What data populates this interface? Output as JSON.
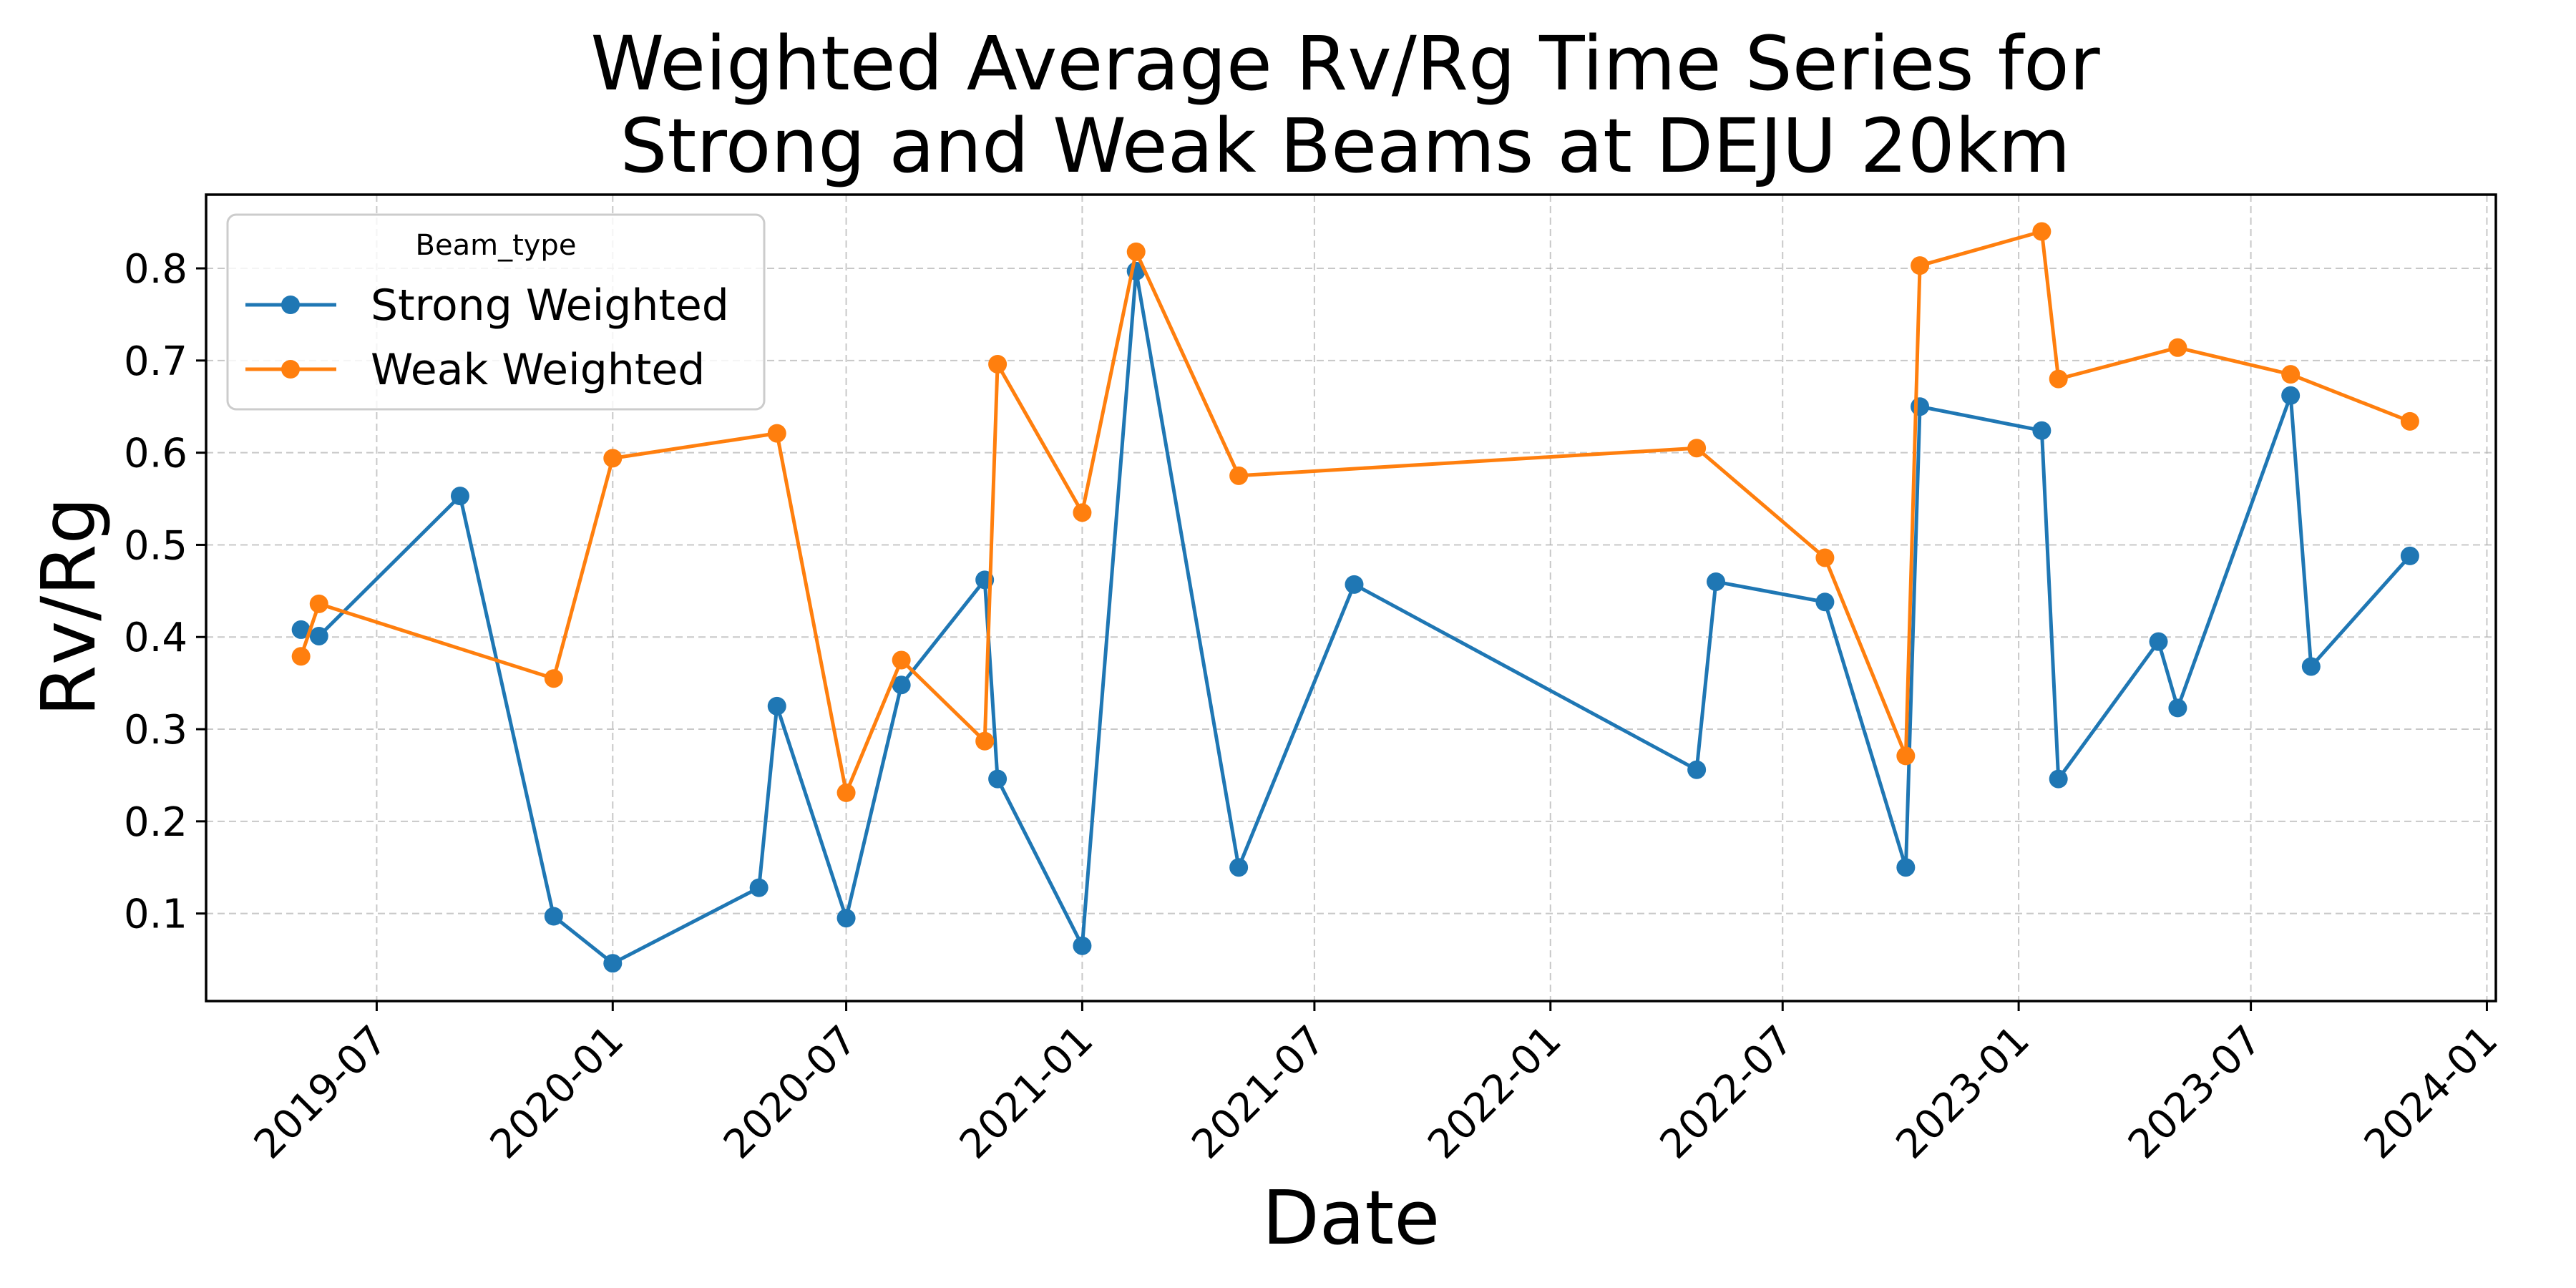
{
  "chart_data": {
    "type": "line",
    "title_line1": "Weighted Average Rv/Rg Time Series for",
    "title_line2": "Strong and Weak Beams at DEJU 20km",
    "xlabel": "Date",
    "ylabel": "Rv/Rg",
    "xlim": [
      "2019-02-18",
      "2024-01-08"
    ],
    "ylim": [
      0.005,
      0.88
    ],
    "x_ticks": [
      "2019-07-01",
      "2020-01-01",
      "2020-07-01",
      "2021-01-01",
      "2021-07-01",
      "2022-01-01",
      "2022-07-01",
      "2023-01-01",
      "2023-07-01",
      "2024-01-01"
    ],
    "x_tick_labels": [
      "2019-07",
      "2020-01",
      "2020-07",
      "2021-01",
      "2021-07",
      "2022-01",
      "2022-07",
      "2023-01",
      "2023-07",
      "2024-01"
    ],
    "y_ticks": [
      0.1,
      0.2,
      0.3,
      0.4,
      0.5,
      0.6,
      0.7,
      0.8
    ],
    "y_tick_labels": [
      "0.1",
      "0.2",
      "0.3",
      "0.4",
      "0.5",
      "0.6",
      "0.7",
      "0.8"
    ],
    "grid": true,
    "legend": {
      "title": "Beam_type",
      "placement": "top-left"
    },
    "series": [
      {
        "name": "Strong Weighted",
        "color": "#1f77b4",
        "points": [
          [
            "2019-05-03",
            0.408
          ],
          [
            "2019-05-17",
            0.401
          ],
          [
            "2019-09-04",
            0.553
          ],
          [
            "2019-11-16",
            0.097
          ],
          [
            "2020-01-01",
            0.046
          ],
          [
            "2020-04-24",
            0.128
          ],
          [
            "2020-05-08",
            0.325
          ],
          [
            "2020-07-01",
            0.095
          ],
          [
            "2020-08-13",
            0.348
          ],
          [
            "2020-10-17",
            0.462
          ],
          [
            "2020-10-27",
            0.246
          ],
          [
            "2021-01-01",
            0.065
          ],
          [
            "2021-02-12",
            0.797
          ],
          [
            "2021-05-03",
            0.15
          ],
          [
            "2021-08-01",
            0.457
          ],
          [
            "2022-04-25",
            0.256
          ],
          [
            "2022-05-10",
            0.46
          ],
          [
            "2022-08-03",
            0.438
          ],
          [
            "2022-10-05",
            0.15
          ],
          [
            "2022-10-16",
            0.65
          ],
          [
            "2023-01-19",
            0.624
          ],
          [
            "2023-02-01",
            0.246
          ],
          [
            "2023-04-20",
            0.395
          ],
          [
            "2023-05-05",
            0.323
          ],
          [
            "2023-08-01",
            0.662
          ],
          [
            "2023-08-17",
            0.368
          ],
          [
            "2023-11-02",
            0.488
          ]
        ]
      },
      {
        "name": "Weak Weighted",
        "color": "#ff7f0e",
        "points": [
          [
            "2019-05-03",
            0.379
          ],
          [
            "2019-05-17",
            0.436
          ],
          [
            "2019-11-16",
            0.355
          ],
          [
            "2020-01-01",
            0.594
          ],
          [
            "2020-05-08",
            0.621
          ],
          [
            "2020-07-01",
            0.231
          ],
          [
            "2020-08-13",
            0.375
          ],
          [
            "2020-10-17",
            0.287
          ],
          [
            "2020-10-27",
            0.696
          ],
          [
            "2021-01-01",
            0.535
          ],
          [
            "2021-02-12",
            0.818
          ],
          [
            "2021-05-03",
            0.575
          ],
          [
            "2022-04-25",
            0.605
          ],
          [
            "2022-08-03",
            0.486
          ],
          [
            "2022-10-05",
            0.271
          ],
          [
            "2022-10-16",
            0.803
          ],
          [
            "2023-01-19",
            0.84
          ],
          [
            "2023-02-01",
            0.68
          ],
          [
            "2023-05-05",
            0.714
          ],
          [
            "2023-08-01",
            0.685
          ],
          [
            "2023-11-02",
            0.634
          ]
        ]
      }
    ]
  }
}
